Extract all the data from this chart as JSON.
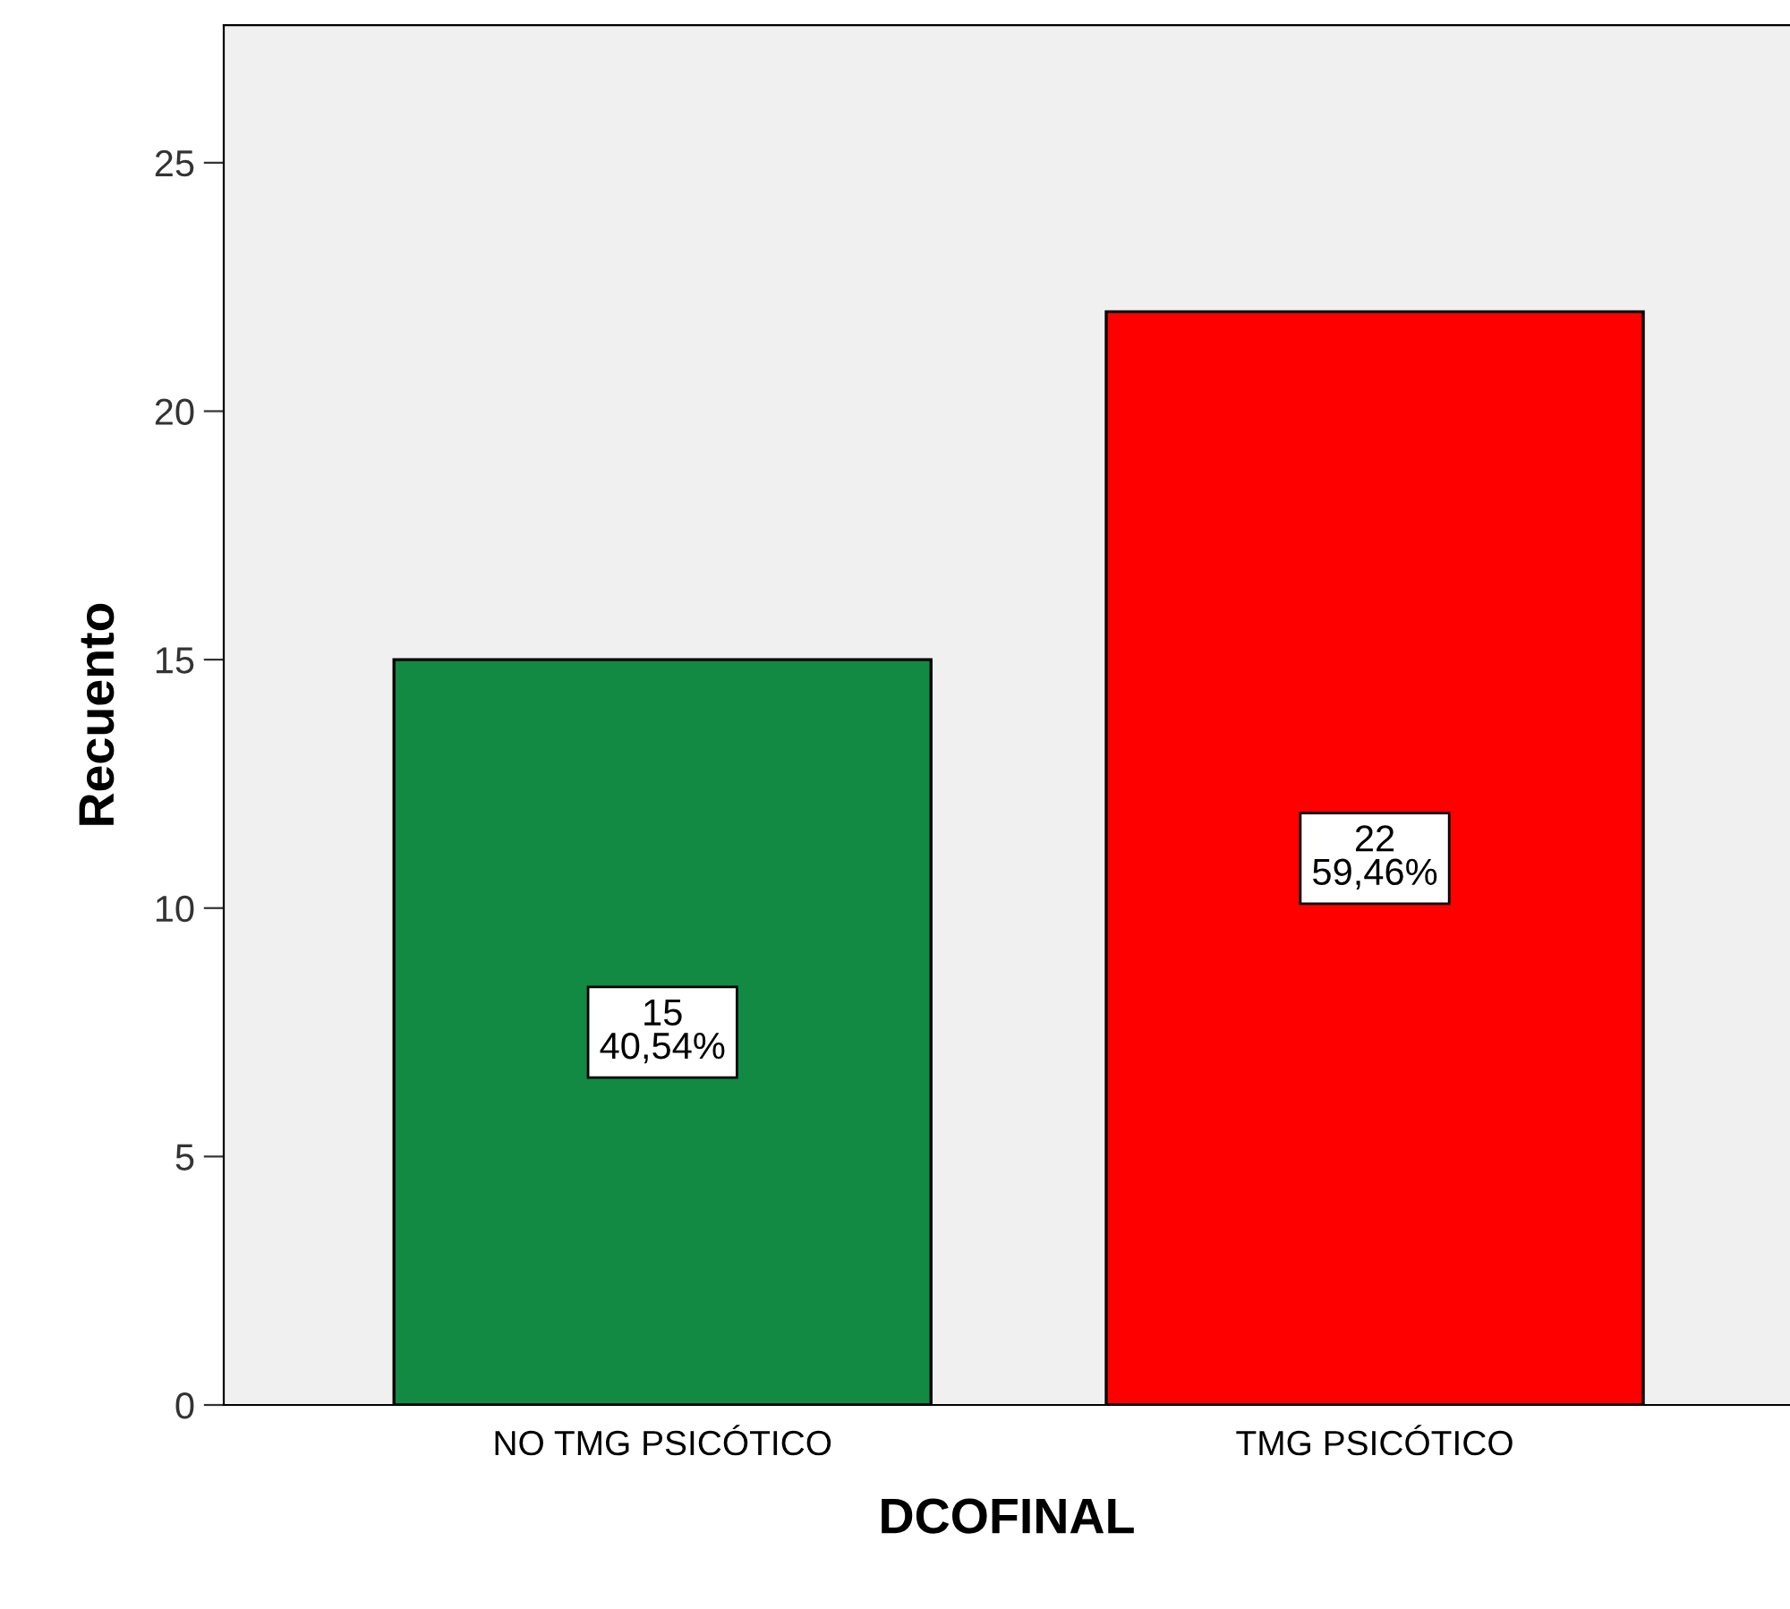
{
  "chart_data": {
    "type": "bar",
    "xlabel": "DCOFINAL",
    "ylabel": "Recuento",
    "categories": [
      "NO TMG PSICÓTICO",
      "TMG PSICÓTICO"
    ],
    "values": [
      15,
      22
    ],
    "colors": [
      "#128a44",
      "#ff0000"
    ],
    "value_labels": [
      "15\n40,54%",
      "22\n59,46%"
    ],
    "ylim": [
      0,
      27.77
    ],
    "yticks": [
      0,
      5,
      10,
      15,
      20,
      25
    ],
    "grid": false,
    "legend": false
  }
}
